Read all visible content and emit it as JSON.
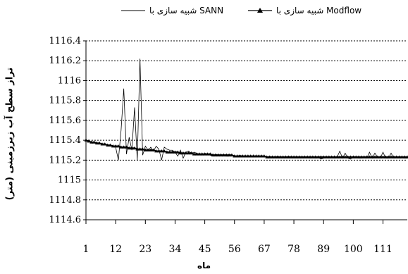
{
  "chart_data": {
    "type": "line",
    "xlabel": "ماه",
    "ylabel": "تراز سطح آب زیرزمینی (متر)",
    "title": "",
    "xlim": [
      1,
      120
    ],
    "ylim": [
      1114.6,
      1116.4
    ],
    "y_ticks": [
      "1114.6",
      "1114.8",
      "1115",
      "1115.2",
      "1115.4",
      "1115.6",
      "1115.8",
      "1116",
      "1116.2",
      "1116.4"
    ],
    "x_ticks": [
      "1",
      "12",
      "23",
      "34",
      "45",
      "56",
      "67",
      "78",
      "89",
      "100",
      "111"
    ],
    "x_tick_values": [
      1,
      12,
      23,
      34,
      45,
      56,
      67,
      78,
      89,
      100,
      111
    ],
    "grid": "horizontal dotted",
    "legend_position": "top",
    "series": [
      {
        "name": "شبیه سازی با SANN",
        "color": "#000000",
        "marker": "none",
        "points": [
          [
            1,
            1115.4
          ],
          [
            2,
            1115.39
          ],
          [
            3,
            1115.38
          ],
          [
            4,
            1115.38
          ],
          [
            5,
            1115.37
          ],
          [
            6,
            1115.37
          ],
          [
            7,
            1115.36
          ],
          [
            8,
            1115.36
          ],
          [
            9,
            1115.35
          ],
          [
            10,
            1115.35
          ],
          [
            11,
            1115.34
          ],
          [
            12,
            1115.33
          ],
          [
            13,
            1115.2
          ],
          [
            14,
            1115.5
          ],
          [
            15,
            1115.92
          ],
          [
            16,
            1115.26
          ],
          [
            17,
            1115.43
          ],
          [
            18,
            1115.3
          ],
          [
            19,
            1115.73
          ],
          [
            20,
            1115.2
          ],
          [
            21,
            1116.22
          ],
          [
            22,
            1115.25
          ],
          [
            23,
            1115.34
          ],
          [
            24,
            1115.3
          ],
          [
            25,
            1115.33
          ],
          [
            26,
            1115.29
          ],
          [
            27,
            1115.34
          ],
          [
            28,
            1115.31
          ],
          [
            29,
            1115.2
          ],
          [
            30,
            1115.33
          ],
          [
            31,
            1115.31
          ],
          [
            32,
            1115.3
          ],
          [
            33,
            1115.3
          ],
          [
            34,
            1115.28
          ],
          [
            35,
            1115.24
          ],
          [
            36,
            1115.3
          ],
          [
            37,
            1115.22
          ],
          [
            38,
            1115.28
          ],
          [
            39,
            1115.29
          ],
          [
            40,
            1115.27
          ],
          [
            41,
            1115.28
          ],
          [
            42,
            1115.27
          ],
          [
            43,
            1115.26
          ],
          [
            44,
            1115.25
          ],
          [
            45,
            1115.27
          ],
          [
            46,
            1115.26
          ],
          [
            47,
            1115.25
          ],
          [
            48,
            1115.24
          ],
          [
            49,
            1115.26
          ],
          [
            50,
            1115.25
          ],
          [
            51,
            1115.25
          ],
          [
            52,
            1115.25
          ],
          [
            53,
            1115.24
          ],
          [
            54,
            1115.24
          ],
          [
            55,
            1115.25
          ],
          [
            56,
            1115.24
          ],
          [
            57,
            1115.24
          ],
          [
            58,
            1115.25
          ],
          [
            59,
            1115.24
          ],
          [
            60,
            1115.23
          ],
          [
            61,
            1115.24
          ],
          [
            62,
            1115.24
          ],
          [
            63,
            1115.23
          ],
          [
            64,
            1115.24
          ],
          [
            65,
            1115.24
          ],
          [
            66,
            1115.23
          ],
          [
            67,
            1115.24
          ],
          [
            68,
            1115.23
          ],
          [
            69,
            1115.24
          ],
          [
            70,
            1115.23
          ],
          [
            71,
            1115.23
          ],
          [
            72,
            1115.24
          ],
          [
            73,
            1115.23
          ],
          [
            74,
            1115.23
          ],
          [
            75,
            1115.23
          ],
          [
            76,
            1115.24
          ],
          [
            77,
            1115.23
          ],
          [
            78,
            1115.23
          ],
          [
            79,
            1115.23
          ],
          [
            80,
            1115.23
          ],
          [
            81,
            1115.22
          ],
          [
            82,
            1115.23
          ],
          [
            83,
            1115.23
          ],
          [
            84,
            1115.22
          ],
          [
            85,
            1115.23
          ],
          [
            86,
            1115.22
          ],
          [
            87,
            1115.23
          ],
          [
            88,
            1115.21
          ],
          [
            89,
            1115.22
          ],
          [
            90,
            1115.23
          ],
          [
            91,
            1115.22
          ],
          [
            92,
            1115.23
          ],
          [
            93,
            1115.22
          ],
          [
            94,
            1115.23
          ],
          [
            95,
            1115.29
          ],
          [
            96,
            1115.22
          ],
          [
            97,
            1115.27
          ],
          [
            98,
            1115.22
          ],
          [
            99,
            1115.21
          ],
          [
            100,
            1115.24
          ],
          [
            101,
            1115.23
          ],
          [
            102,
            1115.22
          ],
          [
            103,
            1115.22
          ],
          [
            104,
            1115.23
          ],
          [
            105,
            1115.22
          ],
          [
            106,
            1115.28
          ],
          [
            107,
            1115.22
          ],
          [
            108,
            1115.27
          ],
          [
            109,
            1115.23
          ],
          [
            110,
            1115.22
          ],
          [
            111,
            1115.28
          ],
          [
            112,
            1115.22
          ],
          [
            113,
            1115.22
          ],
          [
            114,
            1115.27
          ],
          [
            115,
            1115.22
          ],
          [
            116,
            1115.23
          ],
          [
            117,
            1115.22
          ],
          [
            118,
            1115.23
          ],
          [
            119,
            1115.22
          ],
          [
            120,
            1115.22
          ]
        ]
      },
      {
        "name": "شبیه سازی با Modflow",
        "color": "#000000",
        "marker": "triangle",
        "points": [
          [
            1,
            1115.4
          ],
          [
            2,
            1115.39
          ],
          [
            3,
            1115.38
          ],
          [
            4,
            1115.38
          ],
          [
            5,
            1115.37
          ],
          [
            6,
            1115.37
          ],
          [
            7,
            1115.36
          ],
          [
            8,
            1115.36
          ],
          [
            9,
            1115.35
          ],
          [
            10,
            1115.35
          ],
          [
            11,
            1115.34
          ],
          [
            12,
            1115.34
          ],
          [
            13,
            1115.34
          ],
          [
            14,
            1115.33
          ],
          [
            15,
            1115.33
          ],
          [
            16,
            1115.33
          ],
          [
            17,
            1115.32
          ],
          [
            18,
            1115.32
          ],
          [
            19,
            1115.32
          ],
          [
            20,
            1115.31
          ],
          [
            21,
            1115.31
          ],
          [
            22,
            1115.31
          ],
          [
            23,
            1115.3
          ],
          [
            24,
            1115.3
          ],
          [
            25,
            1115.3
          ],
          [
            26,
            1115.3
          ],
          [
            27,
            1115.29
          ],
          [
            28,
            1115.29
          ],
          [
            29,
            1115.29
          ],
          [
            30,
            1115.29
          ],
          [
            31,
            1115.28
          ],
          [
            32,
            1115.28
          ],
          [
            33,
            1115.28
          ],
          [
            34,
            1115.28
          ],
          [
            35,
            1115.28
          ],
          [
            36,
            1115.27
          ],
          [
            37,
            1115.27
          ],
          [
            38,
            1115.27
          ],
          [
            39,
            1115.27
          ],
          [
            40,
            1115.27
          ],
          [
            41,
            1115.26
          ],
          [
            42,
            1115.26
          ],
          [
            43,
            1115.26
          ],
          [
            44,
            1115.26
          ],
          [
            45,
            1115.26
          ],
          [
            46,
            1115.26
          ],
          [
            47,
            1115.26
          ],
          [
            48,
            1115.25
          ],
          [
            49,
            1115.25
          ],
          [
            50,
            1115.25
          ],
          [
            51,
            1115.25
          ],
          [
            52,
            1115.25
          ],
          [
            53,
            1115.25
          ],
          [
            54,
            1115.25
          ],
          [
            55,
            1115.25
          ],
          [
            56,
            1115.24
          ],
          [
            57,
            1115.24
          ],
          [
            58,
            1115.24
          ],
          [
            59,
            1115.24
          ],
          [
            60,
            1115.24
          ],
          [
            61,
            1115.24
          ],
          [
            62,
            1115.24
          ],
          [
            63,
            1115.24
          ],
          [
            64,
            1115.24
          ],
          [
            65,
            1115.24
          ],
          [
            66,
            1115.24
          ],
          [
            67,
            1115.24
          ],
          [
            68,
            1115.23
          ],
          [
            69,
            1115.23
          ],
          [
            70,
            1115.23
          ],
          [
            71,
            1115.23
          ],
          [
            72,
            1115.23
          ],
          [
            73,
            1115.23
          ],
          [
            74,
            1115.23
          ],
          [
            75,
            1115.23
          ],
          [
            76,
            1115.23
          ],
          [
            77,
            1115.23
          ],
          [
            78,
            1115.23
          ],
          [
            79,
            1115.23
          ],
          [
            80,
            1115.23
          ],
          [
            81,
            1115.23
          ],
          [
            82,
            1115.23
          ],
          [
            83,
            1115.23
          ],
          [
            84,
            1115.23
          ],
          [
            85,
            1115.23
          ],
          [
            86,
            1115.23
          ],
          [
            87,
            1115.23
          ],
          [
            88,
            1115.23
          ],
          [
            89,
            1115.23
          ],
          [
            90,
            1115.23
          ],
          [
            91,
            1115.23
          ],
          [
            92,
            1115.23
          ],
          [
            93,
            1115.23
          ],
          [
            94,
            1115.23
          ],
          [
            95,
            1115.23
          ],
          [
            96,
            1115.23
          ],
          [
            97,
            1115.23
          ],
          [
            98,
            1115.23
          ],
          [
            99,
            1115.23
          ],
          [
            100,
            1115.23
          ],
          [
            101,
            1115.23
          ],
          [
            102,
            1115.23
          ],
          [
            103,
            1115.23
          ],
          [
            104,
            1115.23
          ],
          [
            105,
            1115.23
          ],
          [
            106,
            1115.23
          ],
          [
            107,
            1115.23
          ],
          [
            108,
            1115.23
          ],
          [
            109,
            1115.23
          ],
          [
            110,
            1115.23
          ],
          [
            111,
            1115.23
          ],
          [
            112,
            1115.23
          ],
          [
            113,
            1115.23
          ],
          [
            114,
            1115.23
          ],
          [
            115,
            1115.23
          ],
          [
            116,
            1115.23
          ],
          [
            117,
            1115.23
          ],
          [
            118,
            1115.23
          ],
          [
            119,
            1115.23
          ],
          [
            120,
            1115.23
          ]
        ]
      }
    ]
  }
}
